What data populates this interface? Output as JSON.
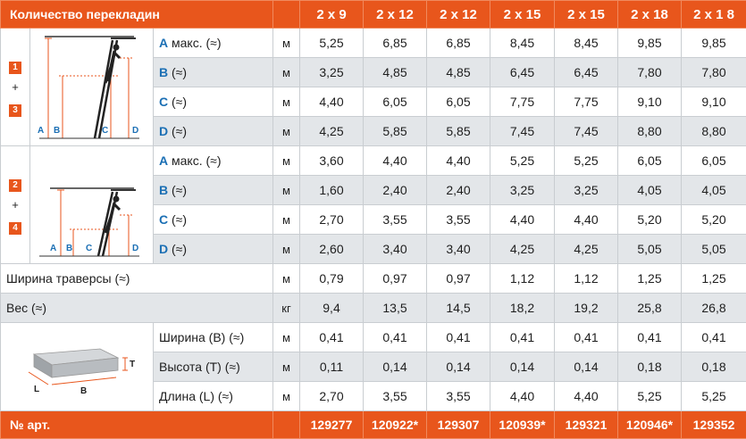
{
  "header": {
    "label": "Количество перекладин",
    "columns": [
      "2 x 9",
      "2 x 12",
      "2 x 12",
      "2 x 15",
      "2 x 15",
      "2 x 18",
      "2 x 1 8"
    ]
  },
  "group1": {
    "badges": [
      "1",
      "+",
      "3"
    ],
    "diagram_labels": [
      "A",
      "B",
      "C",
      "D"
    ],
    "rows": [
      {
        "param": "A",
        "suffix": " макс. (≈)",
        "unit": "м",
        "values": [
          "5,25",
          "6,85",
          "6,85",
          "8,45",
          "8,45",
          "9,85",
          "9,85"
        ]
      },
      {
        "param": "B",
        "suffix": " (≈)",
        "unit": "м",
        "values": [
          "3,25",
          "4,85",
          "4,85",
          "6,45",
          "6,45",
          "7,80",
          "7,80"
        ]
      },
      {
        "param": "C",
        "suffix": " (≈)",
        "unit": "м",
        "values": [
          "4,40",
          "6,05",
          "6,05",
          "7,75",
          "7,75",
          "9,10",
          "9,10"
        ]
      },
      {
        "param": "D",
        "suffix": " (≈)",
        "unit": "м",
        "values": [
          "4,25",
          "5,85",
          "5,85",
          "7,45",
          "7,45",
          "8,80",
          "8,80"
        ]
      }
    ]
  },
  "group2": {
    "badges": [
      "2",
      "+",
      "4"
    ],
    "diagram_labels": [
      "A",
      "B",
      "C",
      "D"
    ],
    "rows": [
      {
        "param": "A",
        "suffix": " макс. (≈)",
        "unit": "м",
        "values": [
          "3,60",
          "4,40",
          "4,40",
          "5,25",
          "5,25",
          "6,05",
          "6,05"
        ]
      },
      {
        "param": "B",
        "suffix": " (≈)",
        "unit": "м",
        "values": [
          "1,60",
          "2,40",
          "2,40",
          "3,25",
          "3,25",
          "4,05",
          "4,05"
        ]
      },
      {
        "param": "C",
        "suffix": " (≈)",
        "unit": "м",
        "values": [
          "2,70",
          "3,55",
          "3,55",
          "4,40",
          "4,40",
          "5,20",
          "5,20"
        ]
      },
      {
        "param": "D",
        "suffix": " (≈)",
        "unit": "м",
        "values": [
          "2,60",
          "3,40",
          "3,40",
          "4,25",
          "4,25",
          "5,05",
          "5,05"
        ]
      }
    ]
  },
  "traverse": {
    "label": "Ширина траверсы (≈)",
    "unit": "м",
    "values": [
      "0,79",
      "0,97",
      "0,97",
      "1,12",
      "1,12",
      "1,25",
      "1,25"
    ]
  },
  "weight": {
    "label": "Вес (≈)",
    "unit": "кг",
    "values": [
      "9,4",
      "13,5",
      "14,5",
      "18,2",
      "19,2",
      "25,8",
      "26,8"
    ]
  },
  "package": {
    "diagram_labels": [
      "T",
      "L",
      "B"
    ],
    "rows": [
      {
        "label": "Ширина (B) (≈)",
        "unit": "м",
        "values": [
          "0,41",
          "0,41",
          "0,41",
          "0,41",
          "0,41",
          "0,41",
          "0,41"
        ]
      },
      {
        "label": "Высота (T) (≈)",
        "unit": "м",
        "values": [
          "0,11",
          "0,14",
          "0,14",
          "0,14",
          "0,14",
          "0,18",
          "0,18"
        ]
      },
      {
        "label": "Длина (L) (≈)",
        "unit": "м",
        "values": [
          "2,70",
          "3,55",
          "3,55",
          "4,40",
          "4,40",
          "5,25",
          "5,25"
        ]
      }
    ]
  },
  "footer": {
    "label": "№ арт.",
    "values": [
      "129277",
      "120922*",
      "129307",
      "120939*",
      "129321",
      "120946*",
      "129352"
    ]
  },
  "colors": {
    "accent": "#e8561c",
    "param_blue": "#1b6fb4",
    "row_gray": "#e3e6e9"
  }
}
